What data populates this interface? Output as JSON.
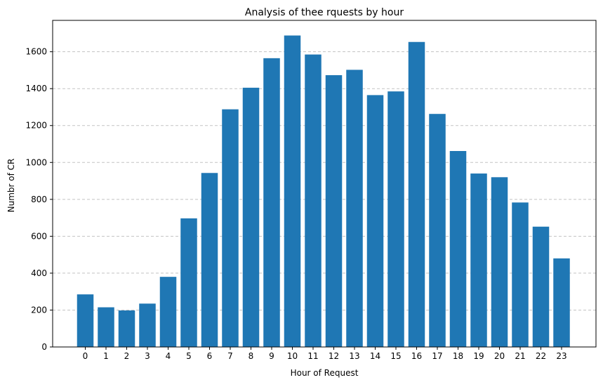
{
  "chart_data": {
    "type": "bar",
    "title": "Analysis of thee rquests by hour",
    "xlabel": "Hour of Request",
    "ylabel": "Numbr of CR",
    "categories": [
      "0",
      "1",
      "2",
      "3",
      "4",
      "5",
      "6",
      "7",
      "8",
      "9",
      "10",
      "11",
      "12",
      "13",
      "14",
      "15",
      "16",
      "17",
      "18",
      "19",
      "20",
      "21",
      "22",
      "23"
    ],
    "values": [
      285,
      215,
      198,
      235,
      380,
      697,
      943,
      1288,
      1405,
      1565,
      1688,
      1585,
      1473,
      1502,
      1365,
      1385,
      1653,
      1263,
      1062,
      940,
      920,
      783,
      652,
      480
    ],
    "ylim": [
      0,
      1770
    ],
    "y_ticks": [
      0,
      200,
      400,
      600,
      800,
      1000,
      1200,
      1400,
      1600
    ],
    "grid": "y-axis dashed",
    "bar_color": "#1f77b4",
    "legend": "none"
  }
}
